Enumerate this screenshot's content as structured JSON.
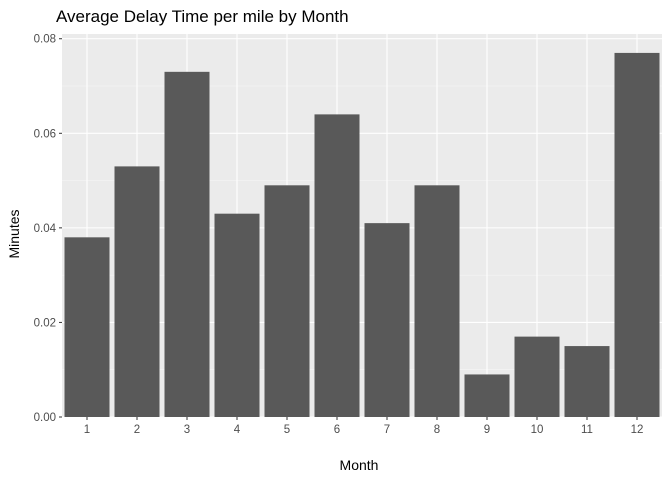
{
  "chart_data": {
    "type": "bar",
    "title": "Average Delay Time per mile by Month",
    "xlabel": "Month",
    "ylabel": "Minutes",
    "categories": [
      "1",
      "2",
      "3",
      "4",
      "5",
      "6",
      "7",
      "8",
      "9",
      "10",
      "11",
      "12"
    ],
    "values": [
      0.038,
      0.053,
      0.073,
      0.043,
      0.049,
      0.064,
      0.041,
      0.049,
      0.009,
      0.017,
      0.015,
      0.077
    ],
    "ylim": [
      0,
      0.081
    ],
    "yticks": [
      "0.00",
      "0.02",
      "0.04",
      "0.06",
      "0.08"
    ],
    "ytick_values": [
      0,
      0.02,
      0.04,
      0.06,
      0.08
    ],
    "grid": true,
    "legend": "none",
    "colors": {
      "bar": "#595959",
      "panel": "#ebebeb",
      "grid_major": "#ffffff",
      "grid_minor": "#f5f5f5",
      "tick": "#333333"
    }
  }
}
